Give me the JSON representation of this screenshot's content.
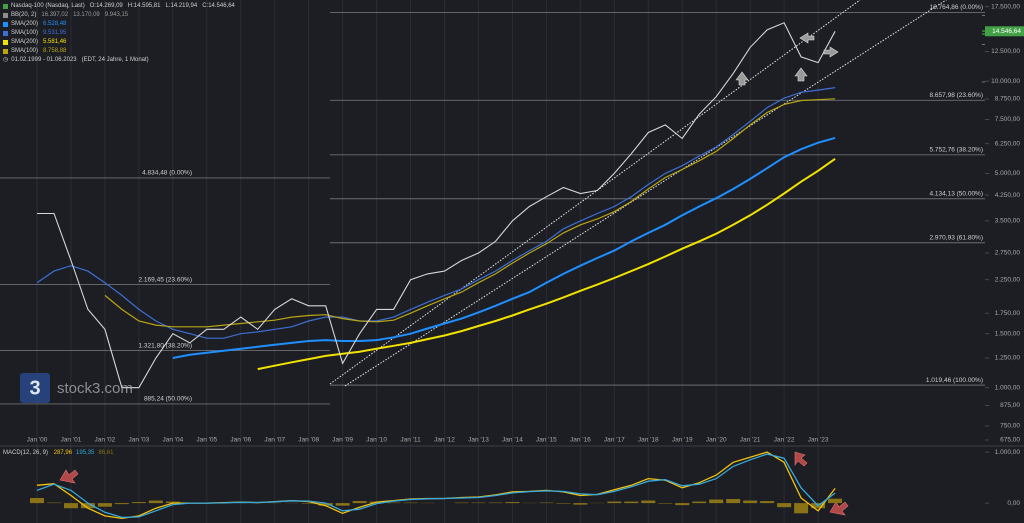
{
  "chart_data": [
    {
      "type": "line",
      "title": "Nasdaq-100 (Nasdaq, Last)",
      "ohlc": {
        "labels": [
          "O:",
          "H:",
          "L:",
          "C:"
        ],
        "values": [
          14269.09,
          14595.81,
          14219.94,
          14546.64
        ],
        "value_labels": [
          "14.269,09",
          "14.595,81",
          "14.219,94",
          "14.546,64"
        ]
      },
      "bb": {
        "name": "BB(20, 2)",
        "values": [
          16397.02,
          13170.09,
          9943.15
        ],
        "value_labels": [
          "16.397,02",
          "13.170,09",
          "9.943,15"
        ]
      },
      "date_range": "01.02.1999 - 01.06.2023",
      "date_note": "(EDT, 24 Jahre, 1 Monat)",
      "watermark": "stock3.com",
      "logo_text": "3",
      "log": true,
      "grid": true,
      "categories": [
        "Jan '00",
        null,
        "Jan '01",
        null,
        "Jan '02",
        null,
        "Jan '03",
        null,
        "Jan '04",
        null,
        "Jan '05",
        null,
        "Jan '06",
        null,
        "Jan '07",
        null,
        "Jan '08",
        null,
        "Jan '09",
        null,
        "Jan '10",
        null,
        "Jan '11",
        null,
        "Jan '12",
        null,
        "Jan '13",
        null,
        "Jan '14",
        null,
        "Jan '15",
        null,
        "Jan '16",
        null,
        "Jan '17",
        null,
        "Jan '18",
        null,
        "Jan '19",
        null,
        "Jan '20",
        null,
        "Jan '21",
        null,
        "Jan '22",
        null,
        "Jan '23",
        null
      ],
      "price": {
        "color": "#d6d6d6",
        "values": [
          3700,
          3700,
          2600,
          1800,
          1550,
          1000,
          1000,
          1250,
          1500,
          1400,
          1550,
          1550,
          1700,
          1550,
          1800,
          1950,
          1850,
          1850,
          1200,
          1500,
          1800,
          1800,
          2250,
          2350,
          2400,
          2600,
          2750,
          3000,
          3500,
          3900,
          4200,
          4500,
          4300,
          4400,
          5000,
          5800,
          6800,
          7200,
          6500,
          7800,
          8900,
          10600,
          12900,
          14700,
          15500,
          12000,
          11500,
          14546.64
        ]
      },
      "last_price": {
        "value": 14546.64,
        "label": "14.546,64",
        "color": "#43a047"
      },
      "series": [
        {
          "name": "SMA(200)",
          "color": "#1f8fff",
          "last_label": "6.528,48",
          "values": [
            null,
            null,
            null,
            null,
            null,
            null,
            null,
            null,
            1250,
            1280,
            1300,
            1320,
            1340,
            1360,
            1380,
            1400,
            1420,
            1430,
            1420,
            1420,
            1430,
            1460,
            1500,
            1560,
            1620,
            1680,
            1760,
            1850,
            1950,
            2050,
            2200,
            2350,
            2500,
            2650,
            2800,
            3000,
            3200,
            3400,
            3650,
            3900,
            4150,
            4450,
            4800,
            5200,
            5650,
            6000,
            6300,
            6528.48
          ]
        },
        {
          "name": "SMA(100)",
          "color": "#3d6fd6",
          "last_label": "9.531,95",
          "values": [
            2200,
            2400,
            2500,
            2400,
            2200,
            2000,
            1800,
            1650,
            1550,
            1500,
            1450,
            1450,
            1500,
            1520,
            1550,
            1580,
            1650,
            1700,
            1700,
            1650,
            1650,
            1700,
            1800,
            1900,
            2000,
            2100,
            2250,
            2400,
            2600,
            2800,
            3000,
            3300,
            3500,
            3700,
            3900,
            4200,
            4600,
            5000,
            5300,
            5700,
            6100,
            6700,
            7400,
            8200,
            8800,
            9200,
            9350,
            9531.95
          ]
        },
        {
          "name": "SMA(200)",
          "color": "#f2e200",
          "last_label": "5.581,46",
          "values": [
            null,
            null,
            null,
            null,
            null,
            null,
            null,
            null,
            null,
            null,
            null,
            null,
            null,
            1150,
            1180,
            1210,
            1240,
            1270,
            1290,
            1310,
            1340,
            1370,
            1400,
            1440,
            1480,
            1530,
            1590,
            1650,
            1720,
            1800,
            1880,
            1970,
            2070,
            2170,
            2280,
            2400,
            2530,
            2680,
            2840,
            3000,
            3180,
            3400,
            3650,
            3950,
            4300,
            4700,
            5100,
            5581.46
          ]
        },
        {
          "name": "SMA(100)",
          "color": "#b9a514",
          "last_label": "8.758,88",
          "values": [
            null,
            null,
            null,
            null,
            2000,
            1800,
            1650,
            1600,
            1580,
            1580,
            1580,
            1600,
            1620,
            1640,
            1660,
            1700,
            1720,
            1730,
            1680,
            1650,
            1640,
            1660,
            1750,
            1850,
            1950,
            2050,
            2200,
            2350,
            2550,
            2750,
            2950,
            3200,
            3400,
            3550,
            3750,
            4050,
            4450,
            4850,
            5150,
            5500,
            5900,
            6500,
            7200,
            7900,
            8400,
            8650,
            8700,
            8758.88
          ]
        }
      ],
      "fibonacci": [
        [
          {
            "value": 4834.48,
            "label": "4.834,48 (0.00%)"
          },
          {
            "value": 2169.45,
            "label": "2.169,45 (23.60%)"
          },
          {
            "value": 1321.8,
            "label": "1.321,80 (38.20%)"
          },
          {
            "value": 885.24,
            "label": "885,24 (50.00%)"
          }
        ],
        [
          {
            "value": 16764.86,
            "label": "16.764,86 (0.00%)"
          },
          {
            "value": 8657.98,
            "label": "8.657,98 (23.60%)"
          },
          {
            "value": 5752.76,
            "label": "5.752,76 (38.20%)"
          },
          {
            "value": 4134.13,
            "label": "4.134,13 (50.00%)"
          },
          {
            "value": 2970.93,
            "label": "2.970,93 (61.80%)"
          },
          {
            "value": 1019.46,
            "label": "1.019,46 (100.00%)"
          }
        ]
      ],
      "ylim": [
        660,
        18400
      ],
      "yticks": [
        {
          "value": 17500,
          "label": "17.500,00"
        },
        {
          "value": 12500,
          "label": "12.500,00"
        },
        {
          "value": 10000,
          "label": "10.000,00"
        },
        {
          "value": 8750,
          "label": "8.750,00"
        },
        {
          "value": 7500,
          "label": "7.500,00"
        },
        {
          "value": 6250,
          "label": "6.250,00"
        },
        {
          "value": 5000,
          "label": "5.000,00"
        },
        {
          "value": 4250,
          "label": "4.250,00"
        },
        {
          "value": 3500,
          "label": "3.500,00"
        },
        {
          "value": 2750,
          "label": "2.750,00"
        },
        {
          "value": 2250,
          "label": "2.250,00"
        },
        {
          "value": 1750,
          "label": "1.750,00"
        },
        {
          "value": 1500,
          "label": "1.500,00"
        },
        {
          "value": 1250,
          "label": "1.250,00"
        },
        {
          "value": 1000,
          "label": "1.000,00"
        },
        {
          "value": 875,
          "label": "875,00"
        },
        {
          "value": 750,
          "label": "750,00"
        },
        {
          "value": 675,
          "label": "675,00"
        }
      ]
    },
    {
      "type": "line",
      "title": "MACD(12, 26, 9)",
      "series": [
        {
          "type": "line",
          "color": "#f4c20d",
          "last_label": "287,96",
          "values": [
            350,
            380,
            150,
            -100,
            -250,
            -300,
            -250,
            -100,
            0,
            0,
            0,
            10,
            20,
            10,
            30,
            50,
            30,
            -50,
            -200,
            -80,
            20,
            50,
            80,
            90,
            90,
            110,
            120,
            160,
            220,
            230,
            250,
            220,
            150,
            170,
            260,
            350,
            480,
            450,
            300,
            400,
            550,
            800,
            900,
            1000,
            800,
            100,
            -150,
            287.96
          ]
        },
        {
          "type": "line",
          "color": "#35a9e0",
          "last_label": "195,35",
          "values": [
            250,
            370,
            250,
            0,
            -180,
            -280,
            -270,
            -150,
            -30,
            0,
            0,
            5,
            15,
            12,
            25,
            45,
            40,
            0,
            -150,
            -120,
            -10,
            40,
            70,
            85,
            90,
            100,
            110,
            150,
            200,
            225,
            240,
            230,
            180,
            165,
            230,
            320,
            430,
            460,
            340,
            370,
            480,
            720,
            850,
            960,
            880,
            300,
            -50,
            195.35
          ]
        },
        {
          "type": "bar",
          "color": "#8a7316",
          "last_label": "86,61",
          "values": [
            100,
            10,
            -100,
            -100,
            -70,
            -20,
            20,
            50,
            30,
            0,
            0,
            5,
            5,
            -2,
            5,
            5,
            -10,
            -50,
            -50,
            40,
            30,
            10,
            10,
            5,
            0,
            10,
            10,
            10,
            20,
            5,
            10,
            -10,
            -30,
            5,
            30,
            30,
            50,
            -10,
            -40,
            30,
            70,
            80,
            50,
            40,
            -80,
            -200,
            -100,
            86.61
          ]
        }
      ],
      "ylim": [
        -390,
        1100
      ],
      "yticks": [
        {
          "value": 1000,
          "label": "1.000,00"
        },
        {
          "value": 0,
          "label": "0,00"
        }
      ]
    }
  ]
}
